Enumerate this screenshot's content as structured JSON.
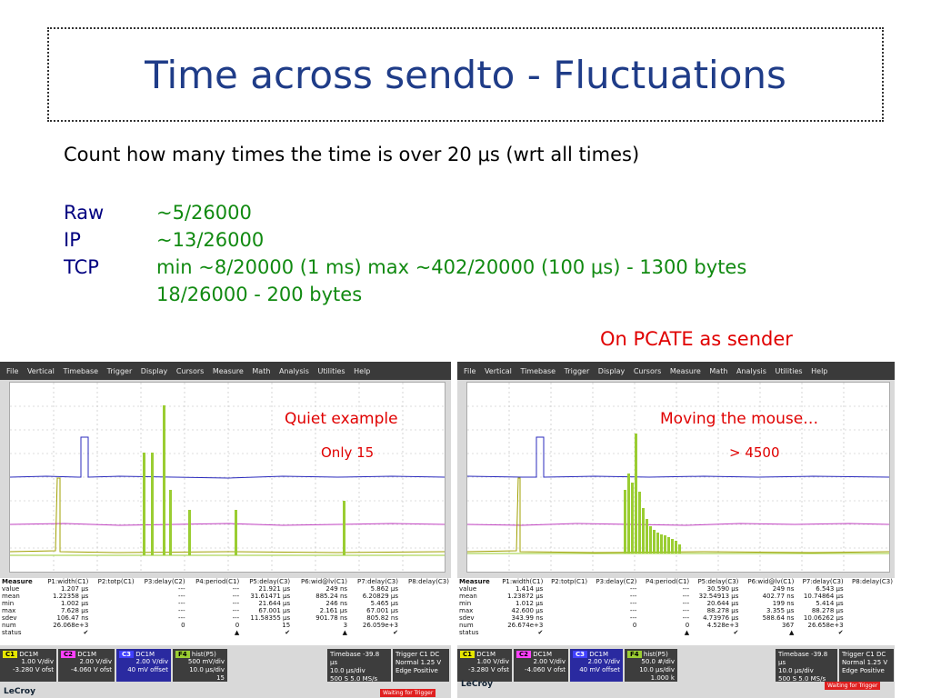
{
  "slide": {
    "title": "Time across sendto - Fluctuations",
    "intro": "Count how many times the time is over 20 μs (wrt all times)",
    "rows": [
      {
        "label": "Raw",
        "value": "~5/26000"
      },
      {
        "label": "IP",
        "value": "~13/26000"
      },
      {
        "label": "TCP",
        "value": "min ~8/20000 (1 ms) max ~402/20000 (100 μs)  - 1300 bytes"
      },
      {
        "label": "",
        "value": "18/26000  - 200 bytes"
      }
    ],
    "note": "On PCATE as sender"
  },
  "menu": [
    "File",
    "Vertical",
    "Timebase",
    "Trigger",
    "Display",
    "Cursors",
    "Measure",
    "Math",
    "Analysis",
    "Utilities",
    "Help"
  ],
  "scope_left": {
    "annotation1": "Quiet example",
    "annotation2": "Only 15",
    "header": [
      "Measure",
      "P1:width(C1)",
      "P2:totp(C1)",
      "P3:delay(C2)",
      "P4:period(C1)",
      "P5:delay(C3)",
      "P6:wid@lv(C1)",
      "P7:delay(C3)",
      "P8:delay(C3)"
    ],
    "rows": [
      [
        "value",
        "1.207 µs",
        "",
        "---",
        "---",
        "21.921 µs",
        "249 ns",
        "5.862 µs",
        ""
      ],
      [
        "mean",
        "1.22358 µs",
        "",
        "---",
        "---",
        "31.61471 µs",
        "885.24 ns",
        "6.20829 µs",
        ""
      ],
      [
        "min",
        "1.002 µs",
        "",
        "---",
        "---",
        "21.644 µs",
        "246 ns",
        "5.465 µs",
        ""
      ],
      [
        "max",
        "7.628 µs",
        "",
        "---",
        "---",
        "67.001 µs",
        "2.161 µs",
        "67.001 µs",
        ""
      ],
      [
        "sdev",
        "106.47 ns",
        "",
        "---",
        "---",
        "11.58355 µs",
        "901.78 ns",
        "805.82 ns",
        ""
      ],
      [
        "num",
        "26.068e+3",
        "",
        "0",
        "0",
        "15",
        "3",
        "26.059e+3",
        ""
      ],
      [
        "status",
        "✔",
        "",
        "",
        "▲",
        "✔",
        "▲",
        "✔",
        ""
      ]
    ],
    "channels": [
      {
        "tag": "C1",
        "coupling": "DC1M",
        "l1": "1.00 V/div",
        "l2": "-3.280 V ofst",
        "color": "#e6e600"
      },
      {
        "tag": "C2",
        "coupling": "DC1M",
        "l1": "2.00 V/div",
        "l2": "-4.060 V ofst",
        "color": "#ff40ff"
      },
      {
        "tag": "C3",
        "coupling": "DC1M",
        "l1": "2.00 V/div",
        "l2": "40 mV offset",
        "color": "#4040ff"
      },
      {
        "tag": "F4",
        "coupling": "hist(P5)",
        "l1": "500 mV/div",
        "l2": "10.0 µs/div",
        "l3": "15",
        "color": "#9acd32"
      }
    ],
    "timebase": {
      "label": "Timebase",
      "delay": "-39.8 µs",
      "div": "10.0 µs/div",
      "pts": "500 S",
      "rate": "5.0 MS/s"
    },
    "trigger": {
      "label": "Trigger",
      "ch": "C1 DC",
      "mode": "Normal",
      "level": "1.25 V",
      "type": "Edge",
      "slope": "Positive"
    },
    "logo": "LeCroy",
    "status": "Waiting for Trigger"
  },
  "scope_right": {
    "annotation1": "Moving the mouse…",
    "annotation2": "> 4500",
    "header": [
      "Measure",
      "P1:width(C1)",
      "P2:totp(C1)",
      "P3:delay(C2)",
      "P4:period(C1)",
      "P5:delay(C3)",
      "P6:wid@lv(C1)",
      "P7:delay(C3)",
      "P8:delay(C3)"
    ],
    "rows": [
      [
        "value",
        "1.414 µs",
        "",
        "---",
        "---",
        "30.590 µs",
        "249 ns",
        "6.543 µs",
        ""
      ],
      [
        "mean",
        "1.23872 µs",
        "",
        "---",
        "---",
        "32.54913 µs",
        "402.77 ns",
        "10.74864 µs",
        ""
      ],
      [
        "min",
        "1.012 µs",
        "",
        "---",
        "---",
        "20.644 µs",
        "199 ns",
        "5.414 µs",
        ""
      ],
      [
        "max",
        "42.600 µs",
        "",
        "---",
        "---",
        "88.278 µs",
        "3.355 µs",
        "88.278 µs",
        ""
      ],
      [
        "sdev",
        "343.99 ns",
        "",
        "---",
        "---",
        "4.73976 µs",
        "588.64 ns",
        "10.06262 µs",
        ""
      ],
      [
        "num",
        "26.674e+3",
        "",
        "0",
        "0",
        "4.528e+3",
        "367",
        "26.658e+3",
        ""
      ],
      [
        "status",
        "✔",
        "",
        "",
        "▲",
        "✔",
        "▲",
        "✔",
        ""
      ]
    ],
    "channels": [
      {
        "tag": "C1",
        "coupling": "DC1M",
        "l1": "1.00 V/div",
        "l2": "-3.280 V ofst",
        "color": "#e6e600"
      },
      {
        "tag": "C2",
        "coupling": "DC1M",
        "l1": "2.00 V/div",
        "l2": "-4.060 V ofst",
        "color": "#ff40ff"
      },
      {
        "tag": "C3",
        "coupling": "DC1M",
        "l1": "2.00 V/div",
        "l2": "40 mV offset",
        "color": "#4040ff"
      },
      {
        "tag": "F4",
        "coupling": "hist(P5)",
        "l1": "50.0 #/div",
        "l2": "10.0 µs/div",
        "l3": "1.000 k",
        "color": "#9acd32"
      }
    ],
    "timebase": {
      "label": "Timebase",
      "delay": "-39.8 µs",
      "div": "10.0 µs/div",
      "pts": "500 S",
      "rate": "5.0 MS/s"
    },
    "trigger": {
      "label": "Trigger",
      "ch": "C1 DC",
      "mode": "Normal",
      "level": "1.25 V",
      "type": "Edge",
      "slope": "Positive"
    },
    "logo": "LeCroy",
    "status": "Waiting for Trigger"
  }
}
